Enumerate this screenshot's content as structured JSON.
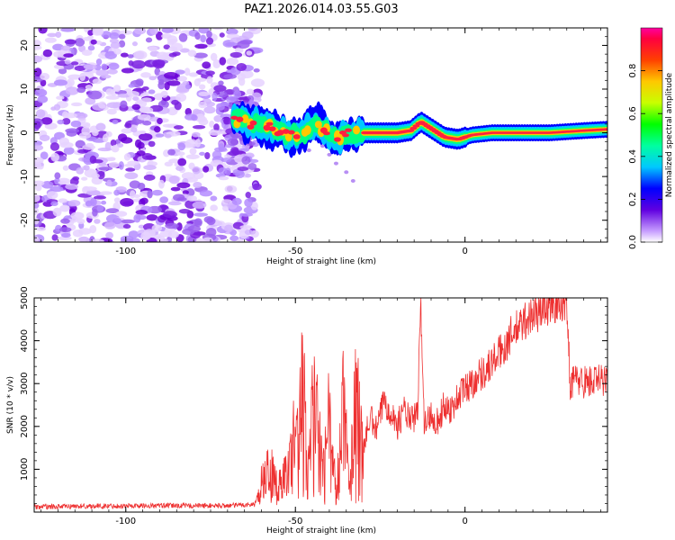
{
  "title": "PAZ1.2026.014.03.55.G03",
  "chart_data": [
    {
      "type": "heatmap",
      "xlabel": "Height of straight line (km)",
      "ylabel": "Frequency (Hz)",
      "xlim": [
        -127,
        42
      ],
      "ylim": [
        -25,
        24
      ],
      "xticks": [
        "-100",
        "-50",
        "0"
      ],
      "yticks": [
        "-20",
        "-10",
        "0",
        "10",
        "20"
      ],
      "colorbar": {
        "label": "Normalized spectral amplitude",
        "range": [
          0,
          1
        ],
        "ticks": [
          "0.0",
          "0.2",
          "0.4",
          "0.6",
          "0.8"
        ]
      },
      "noise_region_x": [
        -127,
        -61
      ],
      "ridge": [
        {
          "x": -68,
          "f": 3.0
        },
        {
          "x": -64,
          "f": 2.5
        },
        {
          "x": -60,
          "f": 1.5
        },
        {
          "x": -56,
          "f": 1.0
        },
        {
          "x": -52,
          "f": -0.5
        },
        {
          "x": -48,
          "f": 0.0
        },
        {
          "x": -45,
          "f": 2.0
        },
        {
          "x": -42,
          "f": 1.0
        },
        {
          "x": -39,
          "f": -1.5
        },
        {
          "x": -36,
          "f": -0.5
        },
        {
          "x": -30,
          "f": 0.0
        },
        {
          "x": -20,
          "f": 0.0
        },
        {
          "x": -16,
          "f": 0.5
        },
        {
          "x": -13,
          "f": 2.5
        },
        {
          "x": -10,
          "f": 1.0
        },
        {
          "x": -6,
          "f": -1.0
        },
        {
          "x": -2,
          "f": -1.5
        },
        {
          "x": 2,
          "f": -0.5
        },
        {
          "x": 8,
          "f": 0.0
        },
        {
          "x": 15,
          "f": 0.0
        },
        {
          "x": 25,
          "f": 0.0
        },
        {
          "x": 35,
          "f": 0.5
        },
        {
          "x": 42,
          "f": 0.8
        }
      ]
    },
    {
      "type": "line",
      "xlabel": "Height of straight line (km)",
      "ylabel": "SNR (10 * v/v)",
      "xlim": [
        -127,
        42
      ],
      "ylim": [
        0,
        5000
      ],
      "xticks": [
        "-100",
        "-50",
        "0"
      ],
      "yticks": [
        "1000",
        "2000",
        "3000",
        "4000",
        "5000"
      ],
      "color": "#ee3030",
      "series": [
        {
          "name": "SNR",
          "x": [
            -127,
            -110,
            -90,
            -70,
            -62,
            -60,
            -58,
            -55,
            -52,
            -50,
            -48,
            -46,
            -44,
            -42,
            -40,
            -38,
            -36,
            -34,
            -32,
            -30,
            -28,
            -26,
            -24,
            -22,
            -20,
            -18,
            -16,
            -14,
            -13,
            -12,
            -10,
            -8,
            -6,
            -4,
            -2,
            0,
            2,
            4,
            6,
            8,
            10,
            12,
            14,
            16,
            18,
            20,
            22,
            24,
            26,
            28,
            30,
            31,
            32,
            35,
            38,
            42
          ],
          "y": [
            120,
            140,
            150,
            150,
            180,
            700,
            1100,
            600,
            1000,
            2000,
            2800,
            1500,
            3000,
            800,
            2200,
            400,
            2500,
            700,
            2800,
            1500,
            2200,
            1900,
            2600,
            2400,
            2000,
            2400,
            2100,
            2300,
            4900,
            2000,
            2300,
            2100,
            2500,
            2400,
            2700,
            2900,
            3000,
            3200,
            3300,
            3500,
            3700,
            3900,
            4200,
            4300,
            4500,
            4600,
            4700,
            4800,
            4850,
            4950,
            4900,
            3000,
            3100,
            3050,
            3050,
            3100
          ]
        }
      ]
    }
  ]
}
